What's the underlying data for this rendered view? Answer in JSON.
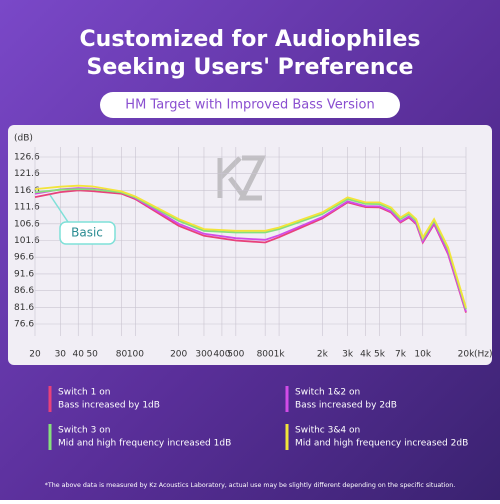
{
  "chart_data": {
    "type": "line",
    "title": "Customized for Audiophiles",
    "subtitle": "Seeking Users' Preference",
    "badge": "HM Target with Improved Bass Version",
    "y_label": "(dB)",
    "x_label": "(Hz)",
    "log_x": true,
    "grid": true,
    "annotation": "Basic",
    "footnote": "*The above data is measured by Kz Acoustics Laboratory, actual use may be slightly different depending on the specific situation.",
    "xlim": [
      20,
      20000
    ],
    "xticks": [
      20,
      30,
      40,
      50,
      80,
      100,
      200,
      300,
      400,
      500,
      800,
      {
        "value": 1000,
        "label": "1k"
      },
      {
        "value": 2000,
        "label": "2k"
      },
      {
        "value": 3000,
        "label": "3k"
      },
      {
        "value": 4000,
        "label": "4k"
      },
      {
        "value": 5000,
        "label": "5k"
      },
      {
        "value": 7000,
        "label": "7k"
      },
      {
        "value": 10000,
        "label": "10k"
      },
      {
        "value": 20000,
        "label": "20k"
      }
    ],
    "ylim": [
      76.6,
      126.6
    ],
    "yticks": [
      126.6,
      121.6,
      116.6,
      111.6,
      106.6,
      101.6,
      96.6,
      91.6,
      86.6,
      81.6,
      76.6
    ],
    "x": [
      20,
      30,
      40,
      50,
      80,
      100,
      200,
      300,
      500,
      800,
      1000,
      2000,
      3000,
      4000,
      5000,
      6000,
      7000,
      8000,
      9000,
      10000,
      12000,
      15000,
      20000
    ],
    "series": [
      {
        "name": "Switch 1 on",
        "description": "Bass increased by 1dB",
        "color": "#e8417a",
        "values": [
          114.6,
          116.1,
          116.6,
          116.4,
          115.6,
          114,
          106,
          103,
          101.6,
          101,
          102.6,
          108.2,
          113,
          111.6,
          111.5,
          110,
          107,
          108.5,
          106.5,
          101,
          106.5,
          97.5,
          80
        ]
      },
      {
        "name": "Switch 1&2 on",
        "description": "Bass increased by 2dB",
        "color": "#d24be8",
        "values": [
          115.6,
          116.9,
          117.3,
          117.1,
          116,
          114.3,
          106.6,
          103.6,
          102.3,
          101.8,
          103.2,
          108.6,
          113.3,
          111.9,
          111.8,
          110.3,
          107.3,
          108.8,
          106.8,
          101.3,
          106.8,
          97.8,
          80.3
        ]
      },
      {
        "name": "Switch 3 on",
        "description": "Mid and high frequency increased 1dB",
        "color": "#86e07c",
        "values": [
          116,
          116.8,
          117,
          116.9,
          116,
          114.5,
          107.5,
          104.5,
          104,
          104,
          105,
          109.5,
          114,
          112.6,
          112.5,
          111,
          108,
          109.5,
          107.5,
          102,
          107.5,
          99,
          81
        ]
      },
      {
        "name": "Swithc 3&4 on",
        "description": "Mid and high frequency increased 2dB",
        "color": "#f2e43a",
        "values": [
          117,
          117.7,
          118,
          117.8,
          116.3,
          114.8,
          108,
          105,
          104.5,
          104.5,
          105.5,
          110,
          114.5,
          113,
          113,
          111.5,
          108.5,
          110,
          108,
          102.5,
          108,
          99.5,
          81.5
        ]
      }
    ]
  }
}
